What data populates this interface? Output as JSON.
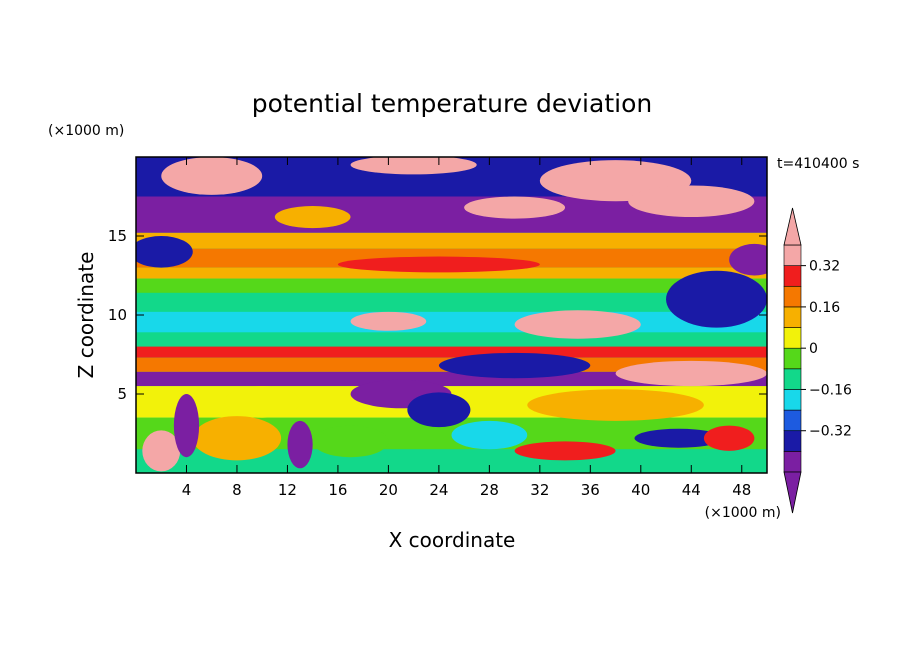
{
  "chart_data": {
    "type": "heatmap",
    "title": "potential temperature deviation",
    "time_label": "t=410400 s",
    "xlabel": "X coordinate",
    "ylabel": "Z coordinate",
    "x_unit": "(×1000 m)",
    "y_unit": "(×1000 m)",
    "xlim": [
      0,
      50
    ],
    "ylim": [
      0,
      20
    ],
    "x_ticks": [
      4,
      8,
      12,
      16,
      20,
      24,
      28,
      32,
      36,
      40,
      44,
      48
    ],
    "y_ticks": [
      5,
      10,
      15
    ],
    "colorbar": {
      "levels": [
        -0.4,
        -0.32,
        -0.24,
        -0.16,
        -0.08,
        0,
        0.08,
        0.16,
        0.24,
        0.32,
        0.4
      ],
      "labeled_ticks": [
        -0.32,
        -0.16,
        0,
        0.16,
        0.32
      ],
      "tick_labels": [
        "−0.32",
        "−0.16",
        "0",
        "0.16",
        "0.32"
      ],
      "colors": [
        "#7b1fa2",
        "#1a1aa6",
        "#1d5be0",
        "#18d8ea",
        "#12d88a",
        "#55d81a",
        "#f2f20a",
        "#f7b000",
        "#f57800",
        "#f01e1e",
        "#f4a7a7"
      ],
      "extend": "both"
    }
  }
}
